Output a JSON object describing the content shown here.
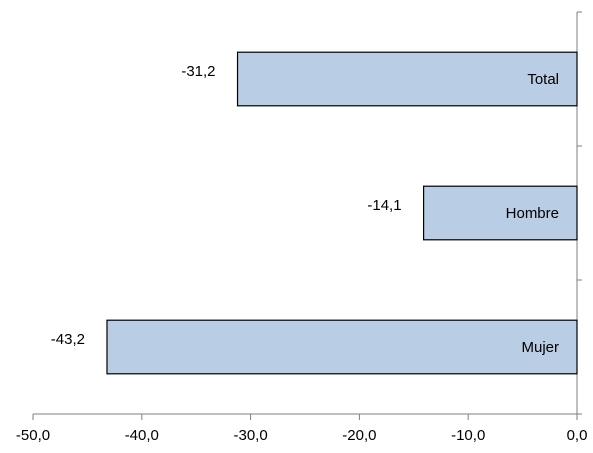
{
  "chart_data": {
    "type": "bar",
    "orientation": "horizontal",
    "categories": [
      "Total",
      "Hombre",
      "Mujer"
    ],
    "values": [
      -31.2,
      -14.1,
      -43.2
    ],
    "value_labels": [
      "-31,2",
      "-14,1",
      "-43,2"
    ],
    "title": "",
    "xlabel": "",
    "ylabel": "",
    "xlim": [
      -50,
      0
    ],
    "x_ticks": [
      -50,
      -40,
      -30,
      -20,
      -10,
      0
    ],
    "x_tick_labels": [
      "-50,0",
      "-40,0",
      "-30,0",
      "-20,0",
      "-10,0",
      "0,0"
    ],
    "grid": false,
    "legend": "none",
    "category_label_position": "inside-bar-right",
    "colors": {
      "bar_fill": "#b9cde5",
      "bar_stroke": "#000000",
      "axis": "#7f7f7f",
      "text": "#000000"
    }
  }
}
